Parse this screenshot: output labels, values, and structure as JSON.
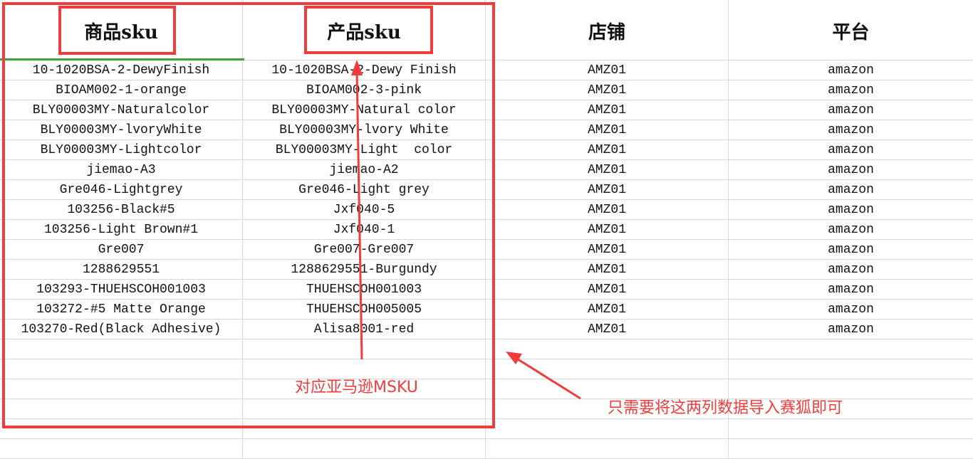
{
  "sheet": {
    "headers": [
      "商品sku",
      "产品sku",
      "店铺",
      "平台"
    ],
    "rows": [
      [
        "10-1020BSA-2-DewyFinish",
        "10-1020BSA-2-Dewy Finish",
        "AMZ01",
        "amazon"
      ],
      [
        "BIOAM002-1-orange",
        "BIOAM002-3-pink",
        "AMZ01",
        "amazon"
      ],
      [
        "BLY00003MY-Naturalcolor",
        "BLY00003MY-Natural color",
        "AMZ01",
        "amazon"
      ],
      [
        "BLY00003MY-lvoryWhite",
        "BLY00003MY-lvory White",
        "AMZ01",
        "amazon"
      ],
      [
        "BLY00003MY-Lightcolor",
        "BLY00003MY-Light  color",
        "AMZ01",
        "amazon"
      ],
      [
        "jiemao-A3",
        "jiemao-A2",
        "AMZ01",
        "amazon"
      ],
      [
        "Gre046-Lightgrey",
        "Gre046-Light grey",
        "AMZ01",
        "amazon"
      ],
      [
        "103256-Black#5",
        "Jxf040-5",
        "AMZ01",
        "amazon"
      ],
      [
        "103256-Light Brown#1",
        "Jxf040-1",
        "AMZ01",
        "amazon"
      ],
      [
        "Gre007",
        "Gre007-Gre007",
        "AMZ01",
        "amazon"
      ],
      [
        "1288629551",
        "1288629551-Burgundy",
        "AMZ01",
        "amazon"
      ],
      [
        "103293-THUEHSCOH001003",
        "THUEHSCOH001003",
        "AMZ01",
        "amazon"
      ],
      [
        "103272-#5 Matte Orange",
        "THUEHSCOH005005",
        "AMZ01",
        "amazon"
      ],
      [
        "103270-Red(Black Adhesive)",
        "Alisa8001-red",
        "AMZ01",
        "amazon"
      ]
    ],
    "empty_rows": 6
  },
  "annotations": {
    "msku_note": "对应亚马逊MSKU",
    "import_note": "只需要将这两列数据导入赛狐即可",
    "color": "#f03c3c"
  },
  "selection_color": "#3fa33f"
}
